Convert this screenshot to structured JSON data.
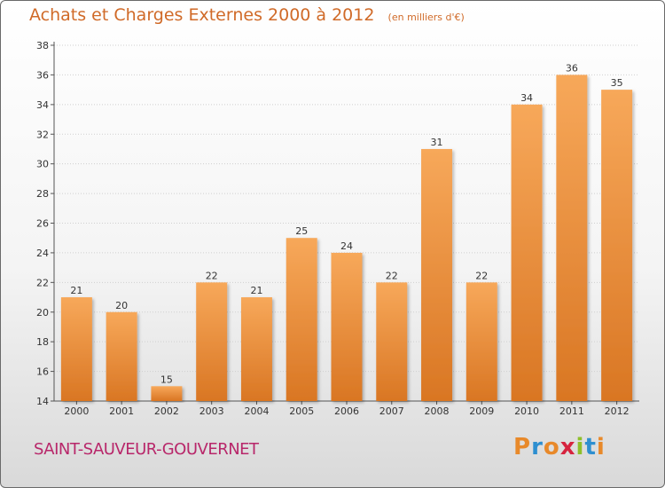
{
  "header": {
    "title": "Achats et Charges Externes 2000 à 2012",
    "subtitle": "(en milliers d'€)"
  },
  "footer": {
    "commune": "SAINT-SAUVEUR-GOUVERNET",
    "logo_text": "Proxiti"
  },
  "colors": {
    "bar_light": "#f7a85a",
    "bar_dark": "#d97623",
    "title": "#d06a28",
    "commune": "#b8276a"
  },
  "chart_data": {
    "type": "bar",
    "categories": [
      "2000",
      "2001",
      "2002",
      "2003",
      "2004",
      "2005",
      "2006",
      "2007",
      "2008",
      "2009",
      "2010",
      "2011",
      "2012"
    ],
    "values": [
      21,
      20,
      15,
      22,
      21,
      25,
      24,
      22,
      31,
      22,
      34,
      36,
      35
    ],
    "title": "Achats et Charges Externes 2000 à 2012",
    "xlabel": "",
    "ylabel": "",
    "ylim": [
      14,
      38
    ],
    "yticks": [
      14,
      16,
      18,
      20,
      22,
      24,
      26,
      28,
      30,
      32,
      34,
      36,
      38
    ],
    "grid": true
  }
}
